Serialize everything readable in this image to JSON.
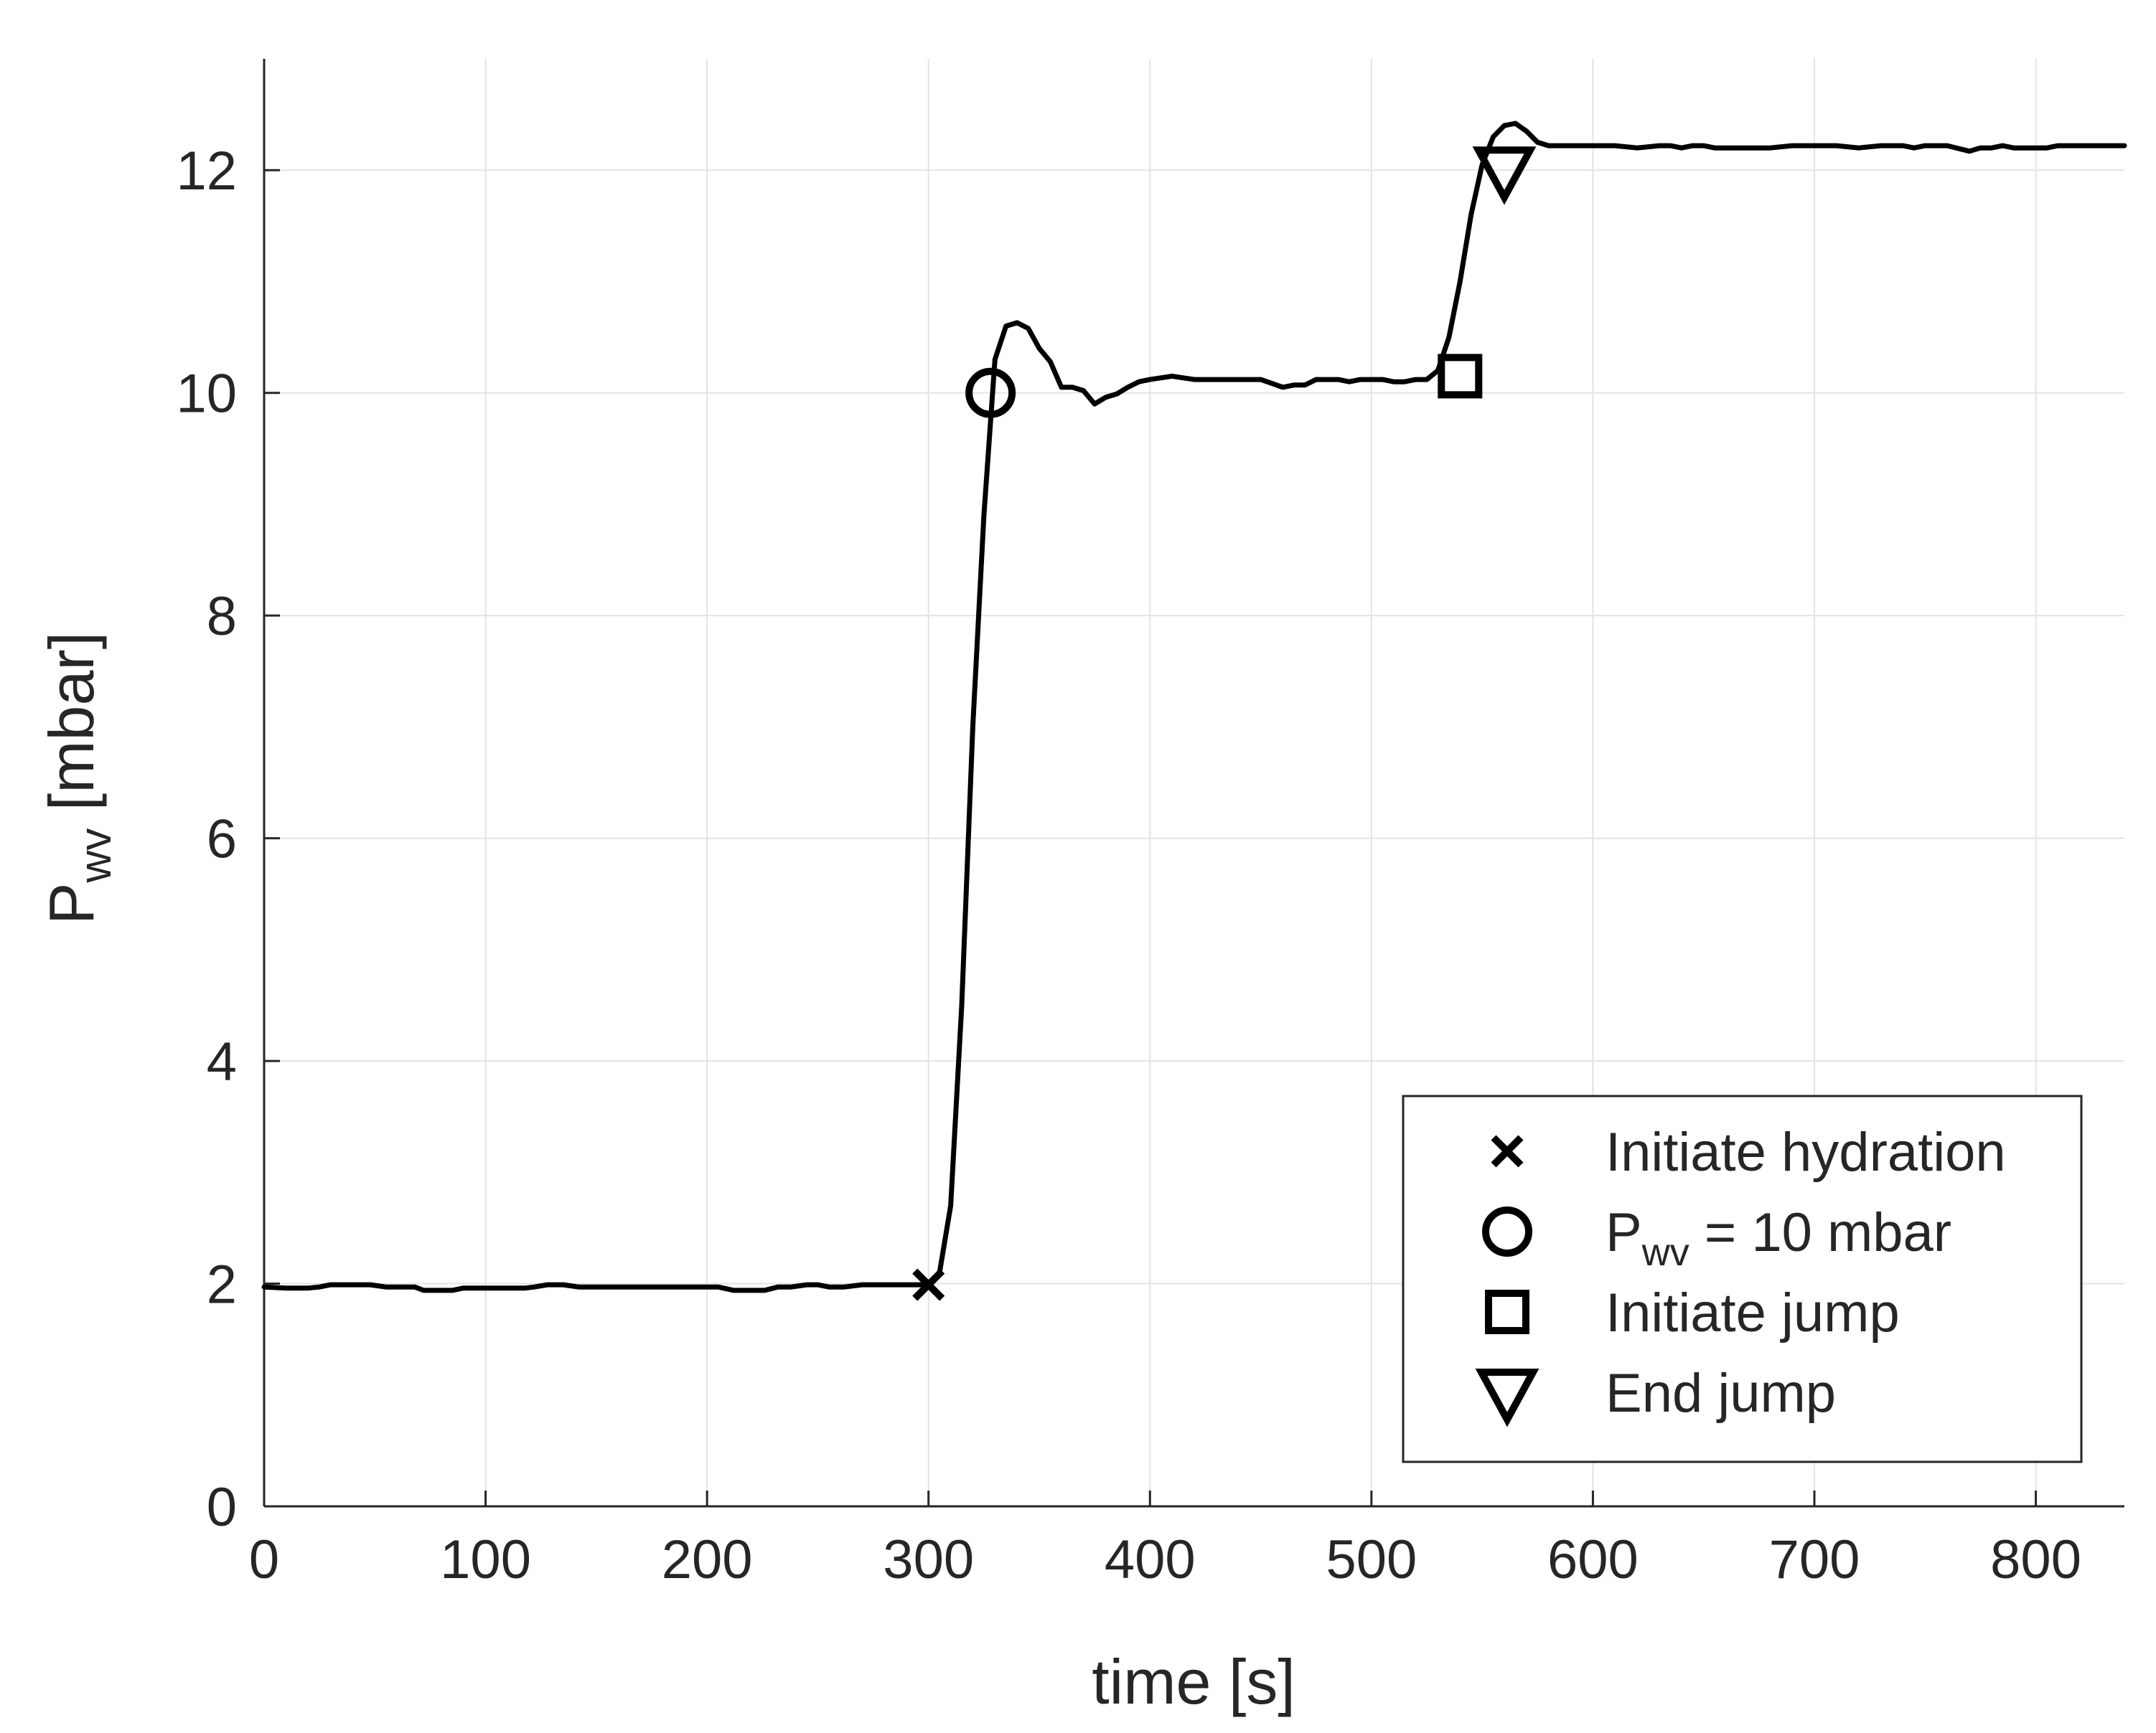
{
  "chart_data": {
    "type": "line",
    "xlabel": "time [s]",
    "ylabel": "P",
    "ylabel_sub": "wv",
    "ylabel_suffix": " [mbar]",
    "xlim": [
      0,
      840
    ],
    "ylim": [
      0,
      13
    ],
    "xticks": [
      0,
      100,
      200,
      300,
      400,
      500,
      600,
      700,
      800
    ],
    "yticks": [
      0,
      2,
      4,
      6,
      8,
      10,
      12
    ],
    "grid": true,
    "legend_position": "bottom-right",
    "colors": {
      "line": "#000000",
      "grid": "#e3e3e3",
      "axis": "#262626"
    },
    "series": [
      {
        "x": [
          0,
          10,
          20,
          25,
          30,
          40,
          48,
          55,
          60,
          68,
          72,
          78,
          85,
          90,
          96,
          102,
          110,
          118,
          122,
          128,
          135,
          142,
          148,
          155,
          165,
          175,
          185,
          195,
          205,
          212,
          220,
          226,
          232,
          238,
          245,
          250,
          255,
          262,
          270,
          278,
          285,
          292,
          300,
          305,
          310,
          315,
          320,
          325,
          330,
          335,
          340,
          345,
          350,
          355,
          360,
          365,
          370,
          375,
          380,
          385,
          390,
          395,
          400,
          410,
          420,
          425,
          430,
          440,
          450,
          460,
          465,
          470,
          475,
          480,
          485,
          490,
          495,
          500,
          505,
          510,
          515,
          520,
          525,
          530,
          535,
          540,
          545,
          550,
          555,
          560,
          565,
          570,
          575,
          580,
          585,
          590,
          600,
          610,
          620,
          630,
          635,
          640,
          645,
          650,
          655,
          660,
          670,
          680,
          690,
          700,
          710,
          720,
          730,
          740,
          745,
          750,
          755,
          760,
          770,
          775,
          780,
          785,
          790,
          800,
          805,
          810,
          820,
          830,
          840
        ],
        "y": [
          1.97,
          1.96,
          1.96,
          1.97,
          1.99,
          1.99,
          1.99,
          1.97,
          1.97,
          1.97,
          1.94,
          1.94,
          1.94,
          1.96,
          1.96,
          1.96,
          1.96,
          1.96,
          1.97,
          1.99,
          1.99,
          1.97,
          1.97,
          1.97,
          1.97,
          1.97,
          1.97,
          1.97,
          1.97,
          1.94,
          1.94,
          1.94,
          1.97,
          1.97,
          1.99,
          1.99,
          1.97,
          1.97,
          1.99,
          1.99,
          1.99,
          1.99,
          1.99,
          2.1,
          2.7,
          4.5,
          7.0,
          8.9,
          10.3,
          10.6,
          10.63,
          10.58,
          10.4,
          10.28,
          10.05,
          10.05,
          10.02,
          9.9,
          9.96,
          9.99,
          10.05,
          10.1,
          10.12,
          10.15,
          10.12,
          10.12,
          10.12,
          10.12,
          10.12,
          10.05,
          10.07,
          10.07,
          10.12,
          10.12,
          10.12,
          10.1,
          10.12,
          10.12,
          10.12,
          10.1,
          10.1,
          10.12,
          10.12,
          10.2,
          10.5,
          11.0,
          11.6,
          12.05,
          12.3,
          12.4,
          12.42,
          12.35,
          12.25,
          12.22,
          12.22,
          12.22,
          12.22,
          12.22,
          12.2,
          12.22,
          12.22,
          12.2,
          12.22,
          12.22,
          12.2,
          12.2,
          12.2,
          12.2,
          12.22,
          12.22,
          12.22,
          12.2,
          12.22,
          12.22,
          12.2,
          12.22,
          12.22,
          12.22,
          12.17,
          12.2,
          12.2,
          12.22,
          12.2,
          12.2,
          12.2,
          12.22,
          12.22,
          12.22,
          12.22
        ]
      }
    ],
    "markers": [
      {
        "symbol": "x",
        "x": 300,
        "y": 1.99
      },
      {
        "symbol": "o",
        "x": 328,
        "y": 10.0
      },
      {
        "symbol": "s",
        "x": 540,
        "y": 10.15
      },
      {
        "symbol": "v",
        "x": 560,
        "y": 12.0
      }
    ],
    "legend": [
      {
        "symbol": "x",
        "label": "Initiate hydration"
      },
      {
        "symbol": "o",
        "label": "P",
        "sub": "wv",
        "suffix": " = 10 mbar"
      },
      {
        "symbol": "s",
        "label": "Initiate jump"
      },
      {
        "symbol": "v",
        "label": "End jump"
      }
    ]
  }
}
